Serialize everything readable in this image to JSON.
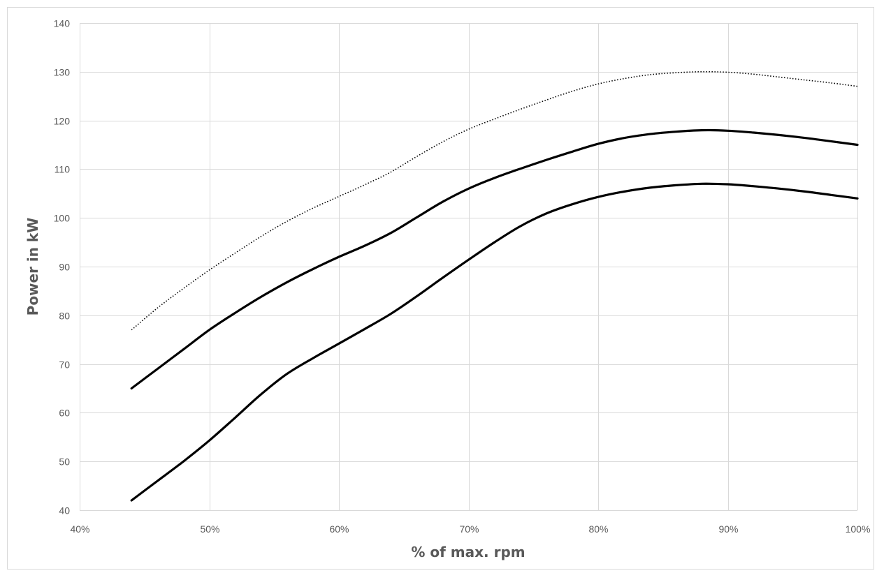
{
  "chart_data": {
    "type": "line",
    "title": "",
    "xlabel": "% of max. rpm",
    "ylabel": "Power in kW",
    "xlim": [
      40,
      100
    ],
    "ylim": [
      40,
      140
    ],
    "x_ticks": [
      {
        "value": 40,
        "label": "40%"
      },
      {
        "value": 50,
        "label": "50%"
      },
      {
        "value": 60,
        "label": "60%"
      },
      {
        "value": 70,
        "label": "70%"
      },
      {
        "value": 80,
        "label": "80%"
      },
      {
        "value": 90,
        "label": "90%"
      },
      {
        "value": 100,
        "label": "100%"
      }
    ],
    "y_ticks": [
      {
        "value": 40,
        "label": "40"
      },
      {
        "value": 50,
        "label": "50"
      },
      {
        "value": 60,
        "label": "60"
      },
      {
        "value": 70,
        "label": "70"
      },
      {
        "value": 80,
        "label": "80"
      },
      {
        "value": 90,
        "label": "90"
      },
      {
        "value": 100,
        "label": "100"
      },
      {
        "value": 110,
        "label": "110"
      },
      {
        "value": 120,
        "label": "120"
      },
      {
        "value": 130,
        "label": "130"
      },
      {
        "value": 140,
        "label": "140"
      }
    ],
    "grid": true,
    "legend": "none",
    "series": [
      {
        "style": "dotted",
        "color": "#000000",
        "x": [
          44,
          46,
          48,
          50,
          52,
          54,
          56,
          58,
          60,
          62,
          64,
          66,
          68,
          70,
          72,
          74,
          76,
          78,
          80,
          82,
          84,
          86,
          88,
          90,
          92,
          94,
          96,
          98,
          100
        ],
        "y": [
          77,
          81.5,
          85.5,
          89.3,
          92.8,
          96.2,
          99.3,
          102,
          104.4,
          106.8,
          109.4,
          112.6,
          115.6,
          118.2,
          120.3,
          122.3,
          124.2,
          126,
          127.5,
          128.6,
          129.4,
          129.8,
          130,
          129.9,
          129.5,
          128.9,
          128.3,
          127.7,
          127
        ]
      },
      {
        "style": "solid",
        "color": "#000000",
        "x": [
          44,
          46,
          48,
          50,
          52,
          54,
          56,
          58,
          60,
          62,
          64,
          66,
          68,
          70,
          72,
          74,
          76,
          78,
          80,
          82,
          84,
          86,
          88,
          90,
          92,
          94,
          96,
          98,
          100
        ],
        "y": [
          65,
          69,
          73,
          77,
          80.5,
          83.8,
          86.8,
          89.5,
          92,
          94.3,
          96.9,
          100.1,
          103.3,
          106,
          108.2,
          110.1,
          111.9,
          113.6,
          115.2,
          116.4,
          117.2,
          117.7,
          118,
          117.9,
          117.5,
          117,
          116.4,
          115.7,
          115
        ]
      },
      {
        "style": "solid",
        "color": "#000000",
        "x": [
          44,
          46,
          48,
          50,
          52,
          54,
          56,
          58,
          60,
          62,
          64,
          66,
          68,
          70,
          72,
          74,
          76,
          78,
          80,
          82,
          84,
          86,
          88,
          90,
          92,
          94,
          96,
          98,
          100
        ],
        "y": [
          42,
          46,
          50,
          54.3,
          59,
          63.8,
          68,
          71.2,
          74.2,
          77.2,
          80.3,
          83.9,
          87.7,
          91.4,
          95,
          98.3,
          100.9,
          102.8,
          104.3,
          105.4,
          106.2,
          106.7,
          107,
          106.9,
          106.5,
          106,
          105.4,
          104.7,
          104
        ]
      }
    ]
  }
}
